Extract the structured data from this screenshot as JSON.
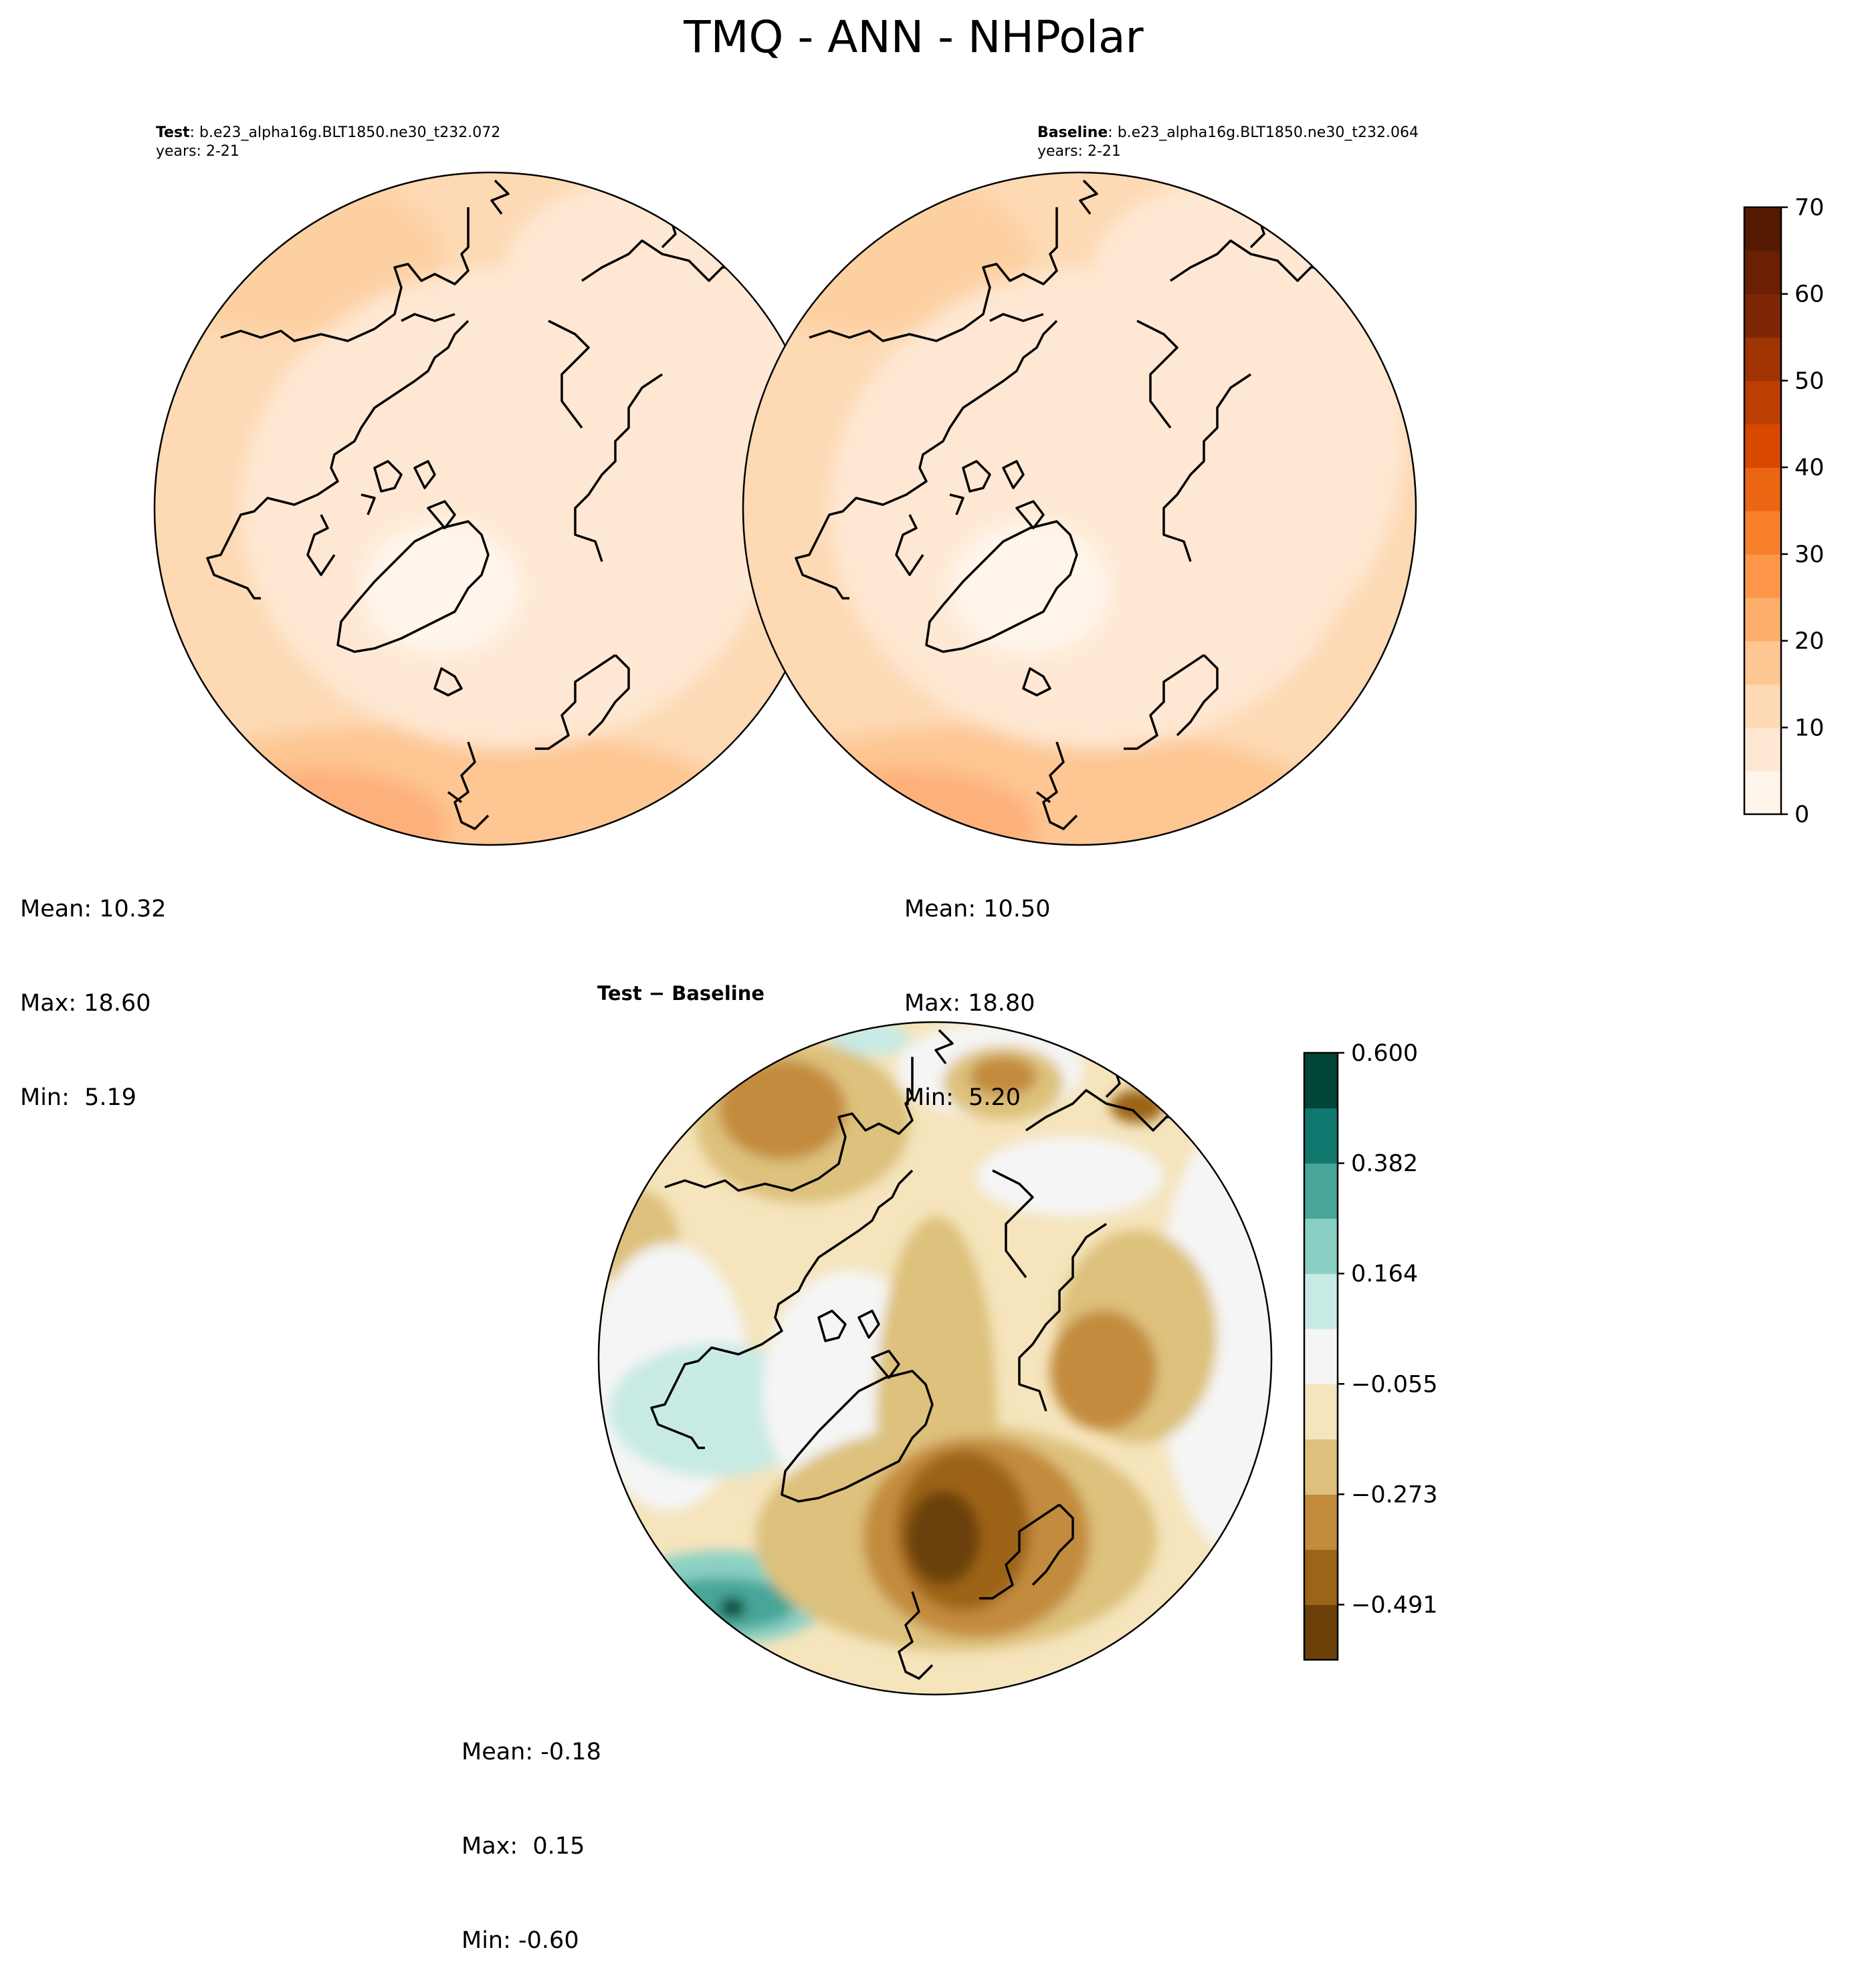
{
  "title": "TMQ - ANN - NHPolar",
  "panels": [
    {
      "label_bold": "Test",
      "label_rest": ": b.e23_alpha16g.BLT1850.ne30_t232.072",
      "years": "years: 2-21",
      "stats": {
        "mean": "Mean: 10.32",
        "max": "Max: 18.60",
        "min": "Min:  5.19"
      }
    },
    {
      "label_bold": "Baseline",
      "label_rest": ": b.e23_alpha16g.BLT1850.ne30_t232.064",
      "years": "years: 2-21",
      "stats": {
        "mean": "Mean: 10.50",
        "max": "Max: 18.80",
        "min": "Min:  5.20"
      }
    },
    {
      "label_bold": "Test − Baseline",
      "stats": {
        "mean": "Mean: -0.18",
        "max": "Max:  0.15",
        "min": "Min: -0.60"
      }
    }
  ],
  "chart_data": [
    {
      "type": "heatmap",
      "projection": "north-polar-stereographic",
      "colormap": "Oranges",
      "colorbar": {
        "location": "right",
        "range": [
          0,
          70
        ],
        "ticks": [
          "0",
          "10",
          "20",
          "30",
          "40",
          "50",
          "60",
          "70"
        ],
        "levels": 14,
        "colors": [
          "#fff5eb",
          "#fee8d3",
          "#fdd9b4",
          "#fdc692",
          "#fdae6b",
          "#fd9649",
          "#f87f2c",
          "#ec6513",
          "#d94801",
          "#bc3e02",
          "#a03403",
          "#7f2704",
          "#6b2003",
          "#561a02"
        ]
      }
    },
    {
      "type": "heatmap",
      "projection": "north-polar-stereographic",
      "colormap": "BrBG",
      "colorbar": {
        "location": "right",
        "range": [
          -0.6,
          0.6
        ],
        "ticks": [
          "0.600",
          "0.382",
          "0.164",
          "−0.055",
          "−0.273",
          "−0.491"
        ],
        "levels": 11,
        "colors": [
          "#6b4009",
          "#9c6417",
          "#c38b3c",
          "#ddc17c",
          "#f5e4bc",
          "#f5f5f5",
          "#c8eae4",
          "#8bd0c4",
          "#47a699",
          "#117870",
          "#014636"
        ]
      }
    }
  ]
}
